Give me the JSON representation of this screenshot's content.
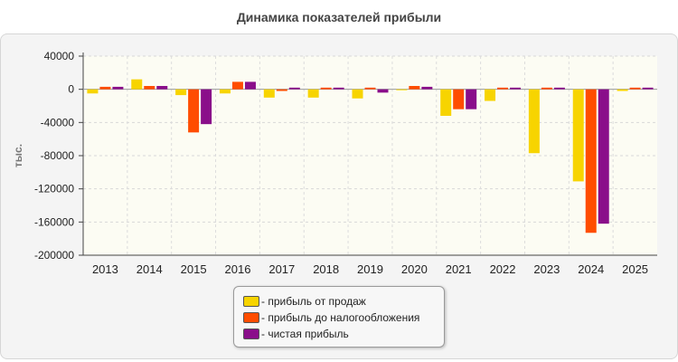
{
  "title": "Динамика показателей прибыли",
  "chart_data": {
    "type": "bar",
    "title": "Динамика показателей прибыли",
    "xlabel": "",
    "ylabel": "тыс.",
    "ylim": [
      -200000,
      40000
    ],
    "yticks": [
      40000,
      0,
      -40000,
      -80000,
      -120000,
      -160000,
      -200000
    ],
    "grid": true,
    "legend_position": "bottom-center",
    "categories": [
      "2013",
      "2014",
      "2015",
      "2016",
      "2017",
      "2018",
      "2019",
      "2020",
      "2021",
      "2022",
      "2023",
      "2024",
      "2025"
    ],
    "series": [
      {
        "name": "- прибыль от продаж",
        "color": "#f7d400",
        "values": [
          -5000,
          12000,
          -7000,
          -5000,
          -10000,
          -10000,
          -11000,
          -1000,
          -32000,
          -14000,
          -77000,
          -111000,
          -2000
        ]
      },
      {
        "name": "- прибыль до налогообложения",
        "color": "#ff4d00",
        "values": [
          3000,
          4000,
          -52000,
          9000,
          -2000,
          2000,
          2000,
          4000,
          -24000,
          2000,
          2000,
          -173000,
          2000
        ]
      },
      {
        "name": "- чистая прибыль",
        "color": "#8a0e8a",
        "values": [
          3000,
          4000,
          -42000,
          9000,
          2000,
          2000,
          -4000,
          3000,
          -24000,
          2000,
          2000,
          -162000,
          2000
        ]
      }
    ]
  }
}
